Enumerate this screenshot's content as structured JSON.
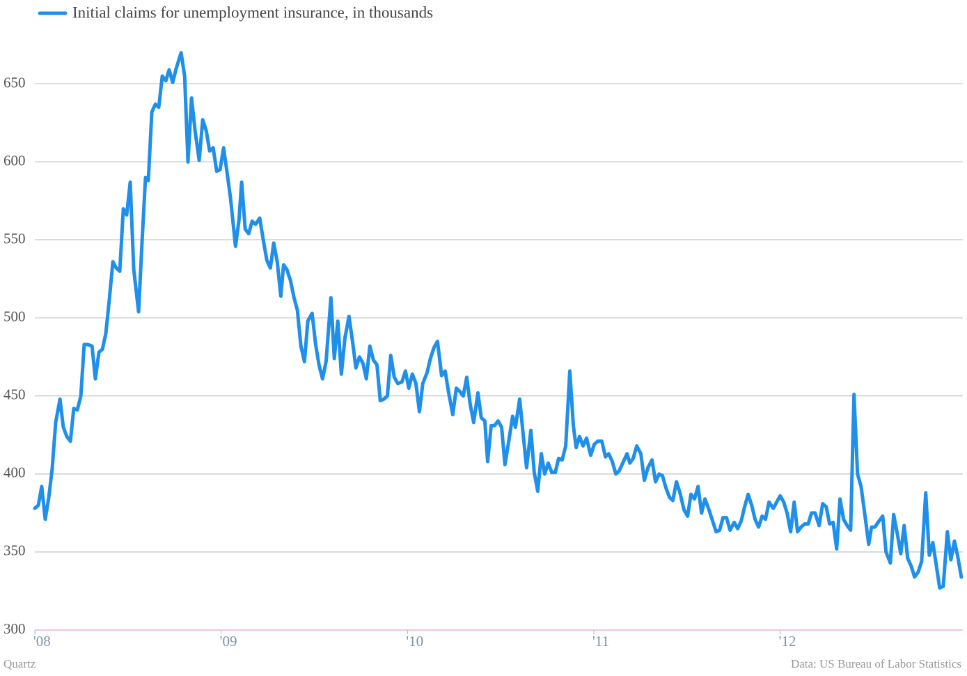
{
  "chart_data": {
    "type": "line",
    "series": [
      {
        "name": "Initial claims for unemployment insurance, in thousands",
        "color": "#1f8fea",
        "x": [
          2008.0,
          2008.019,
          2008.037,
          2008.056,
          2008.075,
          2008.093,
          2008.112,
          2008.135,
          2008.153,
          2008.172,
          2008.191,
          2008.209,
          2008.228,
          2008.247,
          2008.265,
          2008.284,
          2008.307,
          2008.325,
          2008.344,
          2008.363,
          2008.381,
          2008.4,
          2008.419,
          2008.437,
          2008.456,
          2008.475,
          2008.493,
          2008.512,
          2008.531,
          2008.557,
          2008.576,
          2008.594,
          2008.609,
          2008.628,
          2008.647,
          2008.665,
          2008.684,
          2008.703,
          2008.721,
          2008.74,
          2008.759,
          2008.785,
          2008.804,
          2008.822,
          2008.841,
          2008.86,
          2008.882,
          2008.901,
          2008.92,
          2008.938,
          2008.957,
          2008.976,
          2008.994,
          2009.013,
          2009.032,
          2009.05,
          2009.077,
          2009.095,
          2009.11,
          2009.129,
          2009.148,
          2009.166,
          2009.185,
          2009.207,
          2009.226,
          2009.245,
          2009.264,
          2009.282,
          2009.301,
          2009.32,
          2009.335,
          2009.353,
          2009.372,
          2009.391,
          2009.409,
          2009.428,
          2009.447,
          2009.465,
          2009.488,
          2009.507,
          2009.525,
          2009.544,
          2009.563,
          2009.589,
          2009.607,
          2009.626,
          2009.645,
          2009.664,
          2009.686,
          2009.705,
          2009.723,
          2009.742,
          2009.761,
          2009.779,
          2009.798,
          2009.817,
          2009.836,
          2009.854,
          2009.873,
          2009.892,
          2009.91,
          2009.929,
          2009.948,
          2009.97,
          2009.989,
          2010.007,
          2010.026,
          2010.045,
          2010.064,
          2010.082,
          2010.105,
          2010.123,
          2010.142,
          2010.161,
          2010.183,
          2010.202,
          2010.221,
          2010.243,
          2010.262,
          2010.28,
          2010.299,
          2010.318,
          2010.336,
          2010.355,
          2010.378,
          2010.396,
          2010.415,
          2010.43,
          2010.449,
          2010.467,
          2010.486,
          2010.505,
          2010.523,
          2010.542,
          2010.564,
          2010.579,
          2010.602,
          2010.621,
          2010.639,
          2010.662,
          2010.68,
          2010.699,
          2010.718,
          2010.736,
          2010.755,
          2010.774,
          2010.793,
          2010.811,
          2010.83,
          2010.849,
          2010.871,
          2010.89,
          2010.905,
          2010.923,
          2010.942,
          2010.961,
          2010.983,
          2011.002,
          2011.021,
          2011.043,
          2011.062,
          2011.08,
          2011.099,
          2011.118,
          2011.136,
          2011.155,
          2011.178,
          2011.193,
          2011.211,
          2011.23,
          2011.252,
          2011.271,
          2011.29,
          2011.312,
          2011.331,
          2011.35,
          2011.368,
          2011.387,
          2011.406,
          2011.424,
          2011.443,
          2011.462,
          2011.484,
          2011.503,
          2011.521,
          2011.54,
          2011.559,
          2011.578,
          2011.596,
          2011.615,
          2011.637,
          2011.656,
          2011.675,
          2011.693,
          2011.712,
          2011.731,
          2011.753,
          2011.772,
          2011.791,
          2011.809,
          2011.828,
          2011.847,
          2011.865,
          2011.884,
          2011.903,
          2011.921,
          2011.94,
          2011.963,
          2011.981,
          2012.0,
          2012.019,
          2012.037,
          2012.056,
          2012.075,
          2012.093,
          2012.112,
          2012.131,
          2012.15,
          2012.168,
          2012.187,
          2012.209,
          2012.228,
          2012.247,
          2012.265,
          2012.284,
          2012.303,
          2012.321,
          2012.34,
          2012.359,
          2012.378,
          2012.396,
          2012.415,
          2012.434,
          2012.452,
          2012.475,
          2012.49,
          2012.508,
          2012.531,
          2012.55,
          2012.568,
          2012.591,
          2012.609,
          2012.628,
          2012.647,
          2012.665,
          2012.684,
          2012.703,
          2012.721,
          2012.74,
          2012.759,
          2012.781,
          2012.8,
          2012.819,
          2012.837,
          2012.856,
          2012.875,
          2012.897,
          2012.916,
          2012.935,
          2012.953,
          2012.972
        ],
        "values": [
          378,
          380,
          392,
          371,
          385,
          403,
          433,
          448,
          430,
          424,
          421,
          442,
          441,
          450,
          483,
          483,
          482,
          461,
          478,
          480,
          490,
          512,
          536,
          532,
          530,
          570,
          566,
          587,
          531,
          504,
          550,
          590,
          588,
          632,
          637,
          635,
          655,
          652,
          659,
          651,
          660,
          670,
          655,
          600,
          641,
          620,
          601,
          627,
          620,
          607,
          609,
          594,
          595,
          609,
          593,
          577,
          546,
          562,
          587,
          557,
          554,
          562,
          560,
          564,
          550,
          537,
          532,
          548,
          536,
          514,
          534,
          531,
          524,
          513,
          505,
          482,
          472,
          498,
          503,
          483,
          470,
          461,
          472,
          513,
          474,
          498,
          464,
          487,
          501,
          485,
          468,
          475,
          471,
          461,
          482,
          473,
          470,
          447,
          448,
          450,
          476,
          462,
          458,
          459,
          466,
          455,
          464,
          458,
          440,
          458,
          465,
          474,
          481,
          485,
          463,
          466,
          452,
          438,
          455,
          453,
          450,
          462,
          445,
          433,
          452,
          436,
          434,
          408,
          431,
          431,
          434,
          430,
          406,
          420,
          437,
          430,
          448,
          425,
          404,
          428,
          401,
          389,
          413,
          400,
          407,
          401,
          401,
          410,
          409,
          418,
          466,
          431,
          417,
          424,
          418,
          423,
          412,
          419,
          421,
          421,
          411,
          413,
          408,
          400,
          402,
          407,
          413,
          407,
          410,
          418,
          413,
          396,
          404,
          409,
          395,
          400,
          399,
          391,
          385,
          383,
          395,
          388,
          377,
          373,
          387,
          384,
          392,
          375,
          384,
          378,
          370,
          363,
          364,
          372,
          372,
          364,
          369,
          365,
          370,
          379,
          387,
          380,
          371,
          366,
          373,
          371,
          382,
          378,
          382,
          386,
          382,
          375,
          363,
          382,
          363,
          366,
          368,
          368,
          375,
          375,
          367,
          381,
          379,
          368,
          369,
          352,
          384,
          371,
          367,
          364,
          451,
          400,
          392,
          376,
          355,
          366,
          366,
          370,
          373,
          350,
          343,
          374,
          362,
          349,
          367,
          346,
          341,
          334,
          337,
          344,
          388,
          348,
          356,
          342,
          327,
          328,
          363,
          345,
          357,
          347,
          334
        ]
      }
    ],
    "xlim": [
      2008,
      2012.98
    ],
    "xticks": [
      {
        "value": 2008,
        "label": "'08"
      },
      {
        "value": 2009,
        "label": "'09"
      },
      {
        "value": 2010,
        "label": "'10"
      },
      {
        "value": 2011,
        "label": "'11"
      },
      {
        "value": 2012,
        "label": "'12"
      }
    ],
    "ylim": [
      300,
      677
    ],
    "yticks": [
      300,
      350,
      400,
      450,
      500,
      550,
      600,
      650
    ],
    "grid": true,
    "legend": "top-left",
    "credit": "Quartz",
    "source": "Data: US Bureau of Labor Statistics"
  }
}
